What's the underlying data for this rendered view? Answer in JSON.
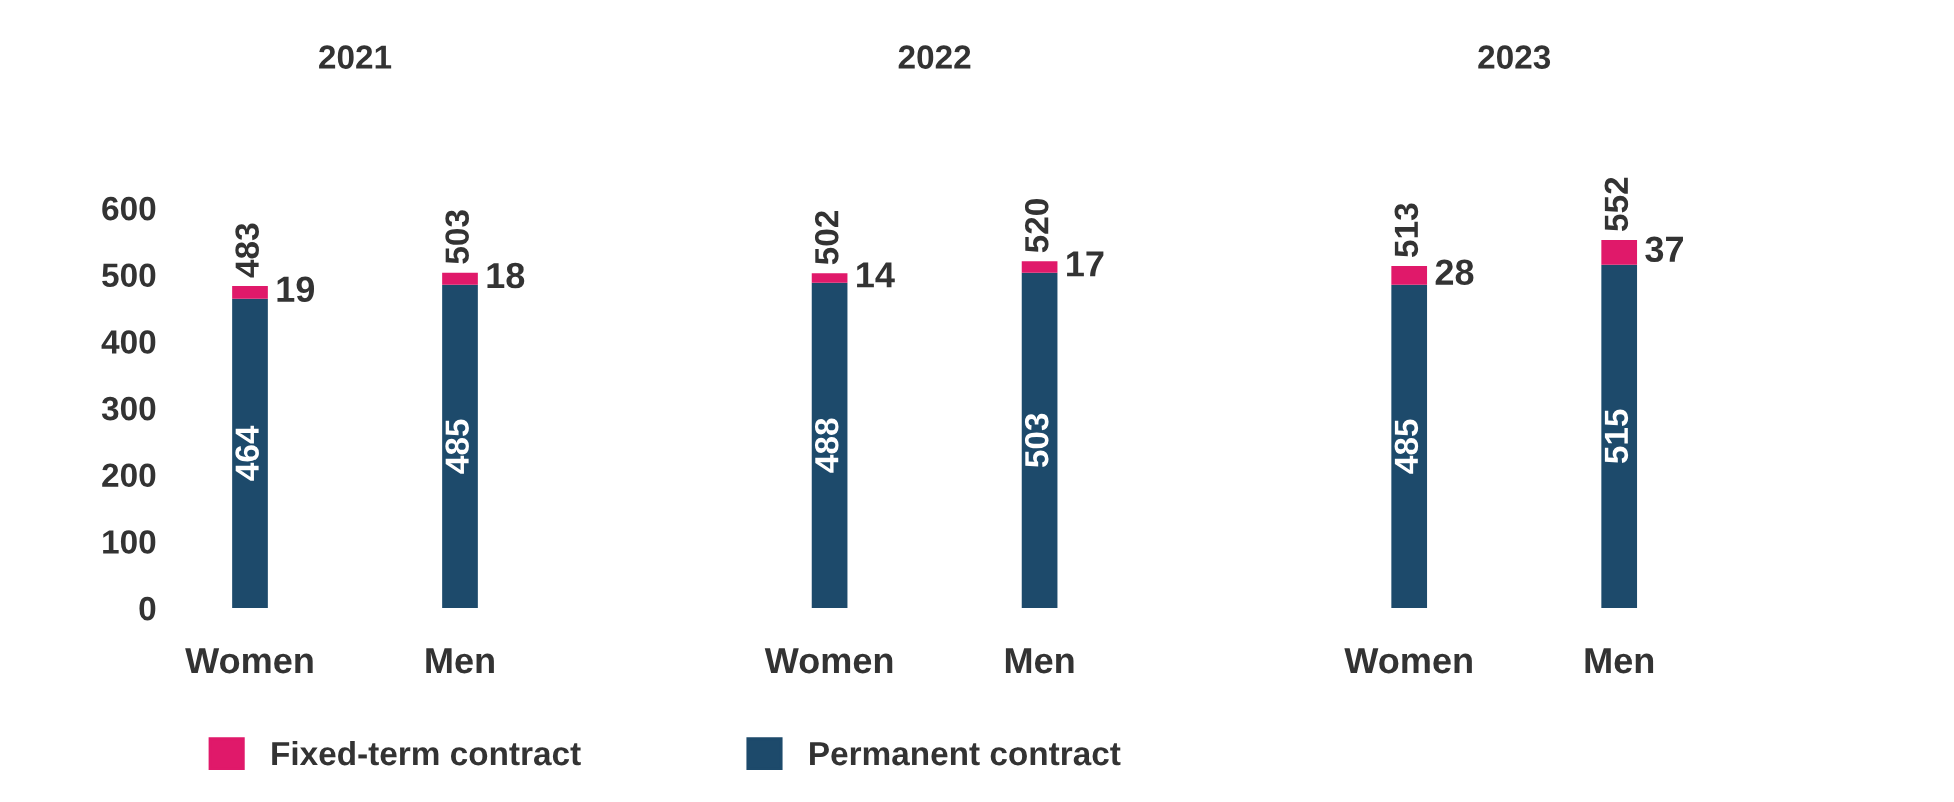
{
  "chart_data": {
    "type": "bar",
    "stacked": true,
    "categories": [
      "Women",
      "Men",
      "Women",
      "Men",
      "Women",
      "Men"
    ],
    "series": [
      {
        "name": "Permanent contract",
        "color": "#1d4a6b",
        "values": [
          464,
          485,
          488,
          503,
          485,
          515
        ]
      },
      {
        "name": "Fixed-term contract",
        "color": "#e0196a",
        "values": [
          19,
          18,
          14,
          17,
          28,
          37
        ]
      }
    ],
    "totals": [
      "483",
      "503",
      "502",
      "520",
      "513",
      "552"
    ],
    "annotations": [
      "2021",
      "2022",
      "2023"
    ],
    "ylim": [
      0,
      600
    ],
    "yticks": [
      0,
      100,
      200,
      300,
      400,
      500,
      600
    ],
    "data_labels": true,
    "legend": "bottom",
    "grid": false
  }
}
